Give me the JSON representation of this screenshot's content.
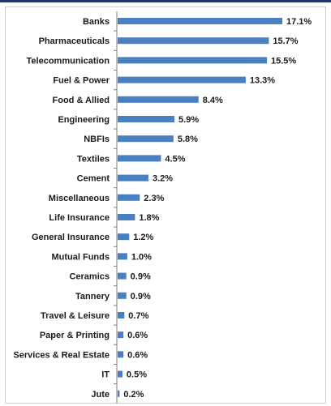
{
  "colors": {
    "bar": "#4a7fc1",
    "axis": "#7f7f7f",
    "frame_top": "#1f3864"
  },
  "chart_data": {
    "type": "bar",
    "orientation": "horizontal",
    "categories": [
      "Banks",
      "Pharmaceuticals",
      "Telecommunication",
      "Fuel & Power",
      "Food & Allied",
      "Engineering",
      "NBFIs",
      "Textiles",
      "Cement",
      "Miscellaneous",
      "Life Insurance",
      "General Insurance",
      "Mutual Funds",
      "Ceramics",
      "Tannery",
      "Travel & Leisure",
      "Paper & Printing",
      "Services & Real Estate",
      "IT",
      "Jute"
    ],
    "values": [
      17.1,
      15.7,
      15.5,
      13.3,
      8.4,
      5.9,
      5.8,
      4.5,
      3.2,
      2.3,
      1.8,
      1.2,
      1.0,
      0.9,
      0.9,
      0.7,
      0.6,
      0.6,
      0.5,
      0.2
    ],
    "value_labels": [
      "17.1%",
      "15.7%",
      "15.5%",
      "13.3%",
      "8.4%",
      "5.9%",
      "5.8%",
      "4.5%",
      "3.2%",
      "2.3%",
      "1.8%",
      "1.2%",
      "1.0%",
      "0.9%",
      "0.9%",
      "0.7%",
      "0.6%",
      "0.6%",
      "0.5%",
      "0.2%"
    ],
    "xlim": [
      0,
      17.1
    ],
    "grid": false,
    "legend": "none"
  }
}
